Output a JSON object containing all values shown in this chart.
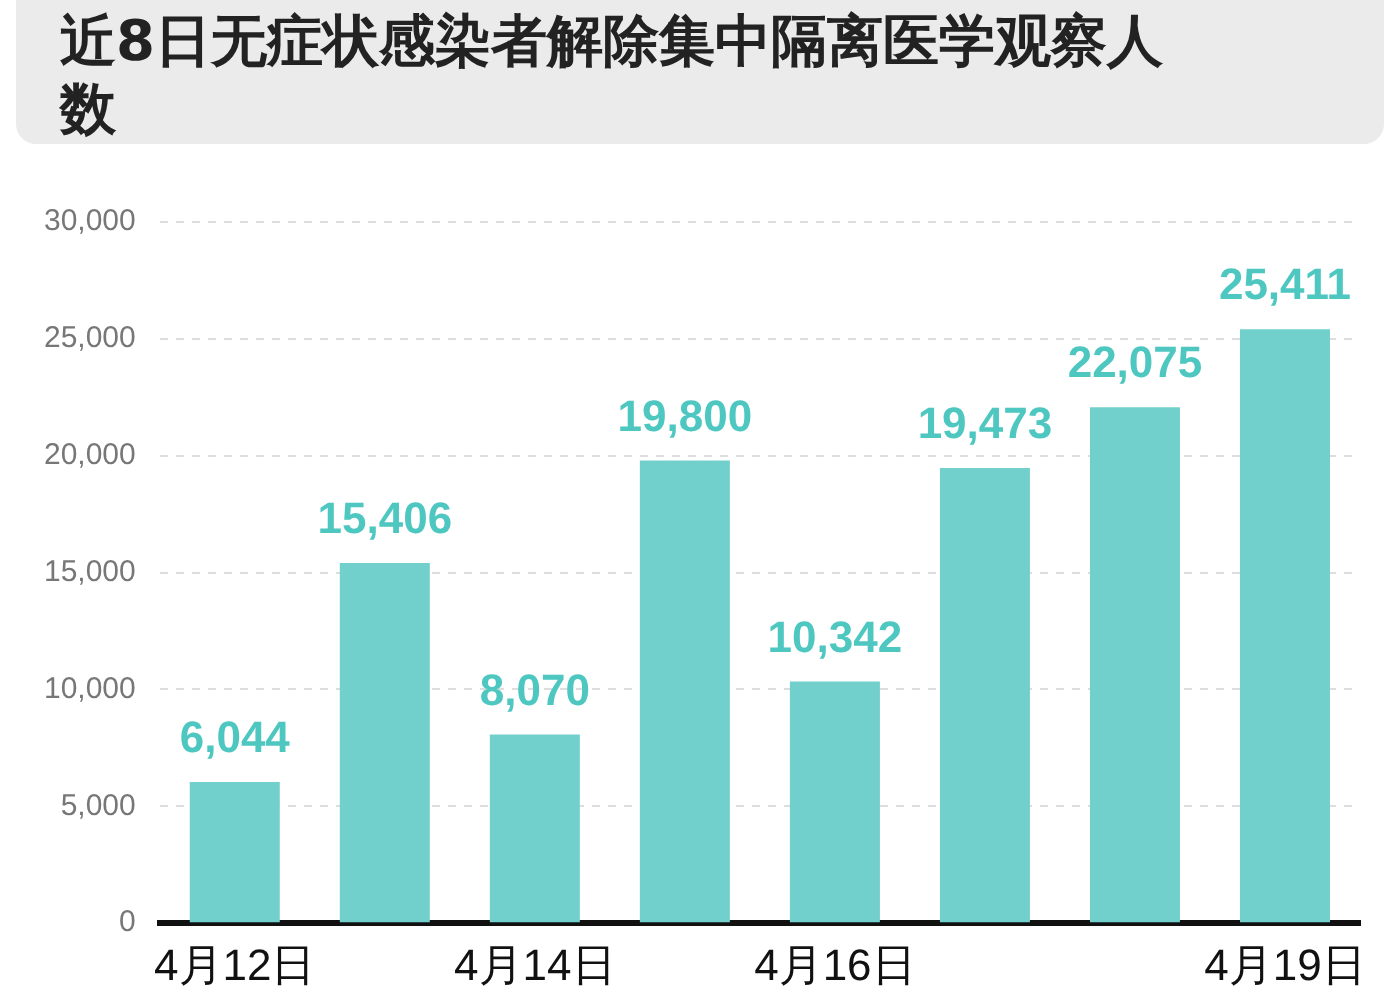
{
  "chart_data": {
    "type": "bar",
    "title": "近8日无症状感染者解除集中隔离医学观察人数",
    "categories": [
      "4月12日",
      null,
      "4月14日",
      null,
      "4月16日",
      null,
      null,
      "4月19日"
    ],
    "values": [
      6044,
      15406,
      8070,
      19800,
      10342,
      19473,
      22075,
      25411
    ],
    "value_labels": [
      "6,044",
      "15,406",
      "8,070",
      "19,800",
      "10,342",
      "19,473",
      "22,075",
      "25,411"
    ],
    "color": "#72d0cc",
    "ylim": [
      0,
      30000
    ],
    "yticks": [
      {
        "value": 0,
        "label": "0"
      },
      {
        "value": 5000,
        "label": "5,000"
      },
      {
        "value": 10000,
        "label": "10,000"
      },
      {
        "value": 15000,
        "label": "15,000"
      },
      {
        "value": 20000,
        "label": "20,000"
      },
      {
        "value": 25000,
        "label": "25,000"
      },
      {
        "value": 30000,
        "label": "30,000"
      }
    ],
    "grid": "y",
    "legend": false
  }
}
